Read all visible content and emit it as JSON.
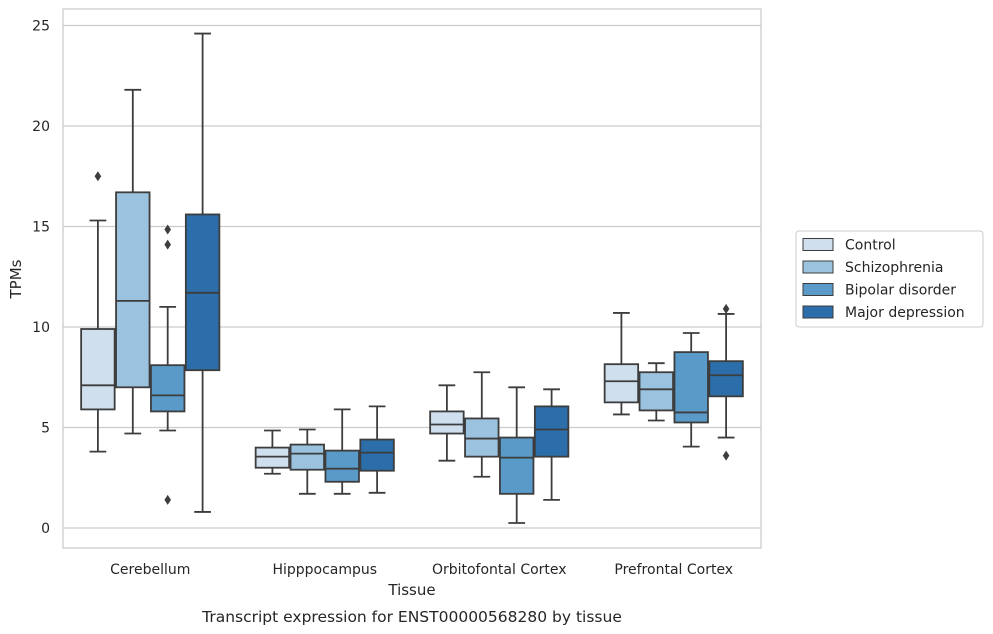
{
  "chart_data": {
    "type": "boxplot",
    "xlabel": "Tissue",
    "ylabel": "TPMs",
    "caption": "Transcript expression for ENST00000568280 by tissue",
    "ylim": [
      -1,
      25.8
    ],
    "yticks": [
      0,
      5,
      10,
      15,
      20,
      25
    ],
    "grid": "horizontal",
    "legend_position": "right",
    "categories": [
      "Cerebellum",
      "Hipppocampus",
      "Orbitofontal Cortex",
      "Prefrontal Cortex"
    ],
    "series": [
      {
        "name": "Control",
        "color": "#cfdfee",
        "boxes": [
          {
            "whislo": 3.8,
            "q1": 5.9,
            "med": 7.1,
            "q3": 9.9,
            "whishi": 15.3,
            "fliers": [
              17.5
            ]
          },
          {
            "whislo": 2.7,
            "q1": 3.0,
            "med": 3.55,
            "q3": 4.0,
            "whishi": 4.85,
            "fliers": []
          },
          {
            "whislo": 3.35,
            "q1": 4.7,
            "med": 5.15,
            "q3": 5.8,
            "whishi": 7.1,
            "fliers": []
          },
          {
            "whislo": 5.65,
            "q1": 6.25,
            "med": 7.3,
            "q3": 8.15,
            "whishi": 10.7,
            "fliers": []
          }
        ]
      },
      {
        "name": "Schizophrenia",
        "color": "#9bc3df",
        "boxes": [
          {
            "whislo": 4.7,
            "q1": 7.0,
            "med": 11.3,
            "q3": 16.7,
            "whishi": 21.8,
            "fliers": []
          },
          {
            "whislo": 1.7,
            "q1": 2.9,
            "med": 3.7,
            "q3": 4.15,
            "whishi": 4.9,
            "fliers": []
          },
          {
            "whislo": 2.55,
            "q1": 3.55,
            "med": 4.45,
            "q3": 5.45,
            "whishi": 7.75,
            "fliers": []
          },
          {
            "whislo": 5.35,
            "q1": 5.85,
            "med": 6.9,
            "q3": 7.75,
            "whishi": 8.2,
            "fliers": []
          }
        ]
      },
      {
        "name": "Bipolar disorder",
        "color": "#5a9ac8",
        "boxes": [
          {
            "whislo": 4.85,
            "q1": 5.8,
            "med": 6.6,
            "q3": 8.1,
            "whishi": 11.0,
            "fliers": [
              14.85,
              14.1,
              1.4
            ]
          },
          {
            "whislo": 1.7,
            "q1": 2.3,
            "med": 2.95,
            "q3": 3.85,
            "whishi": 5.9,
            "fliers": []
          },
          {
            "whislo": 0.25,
            "q1": 1.7,
            "med": 3.5,
            "q3": 4.5,
            "whishi": 7.0,
            "fliers": []
          },
          {
            "whislo": 4.05,
            "q1": 5.25,
            "med": 5.75,
            "q3": 8.75,
            "whishi": 9.7,
            "fliers": []
          }
        ]
      },
      {
        "name": "Major depression",
        "color": "#2b6eaa",
        "boxes": [
          {
            "whislo": 0.8,
            "q1": 7.85,
            "med": 11.7,
            "q3": 15.6,
            "whishi": 24.6,
            "fliers": []
          },
          {
            "whislo": 1.75,
            "q1": 2.85,
            "med": 3.75,
            "q3": 4.4,
            "whishi": 6.05,
            "fliers": []
          },
          {
            "whislo": 1.4,
            "q1": 3.55,
            "med": 4.9,
            "q3": 6.05,
            "whishi": 6.9,
            "fliers": []
          },
          {
            "whislo": 4.5,
            "q1": 6.55,
            "med": 7.6,
            "q3": 8.3,
            "whishi": 10.65,
            "fliers": [
              10.9,
              3.6
            ]
          }
        ]
      }
    ]
  }
}
